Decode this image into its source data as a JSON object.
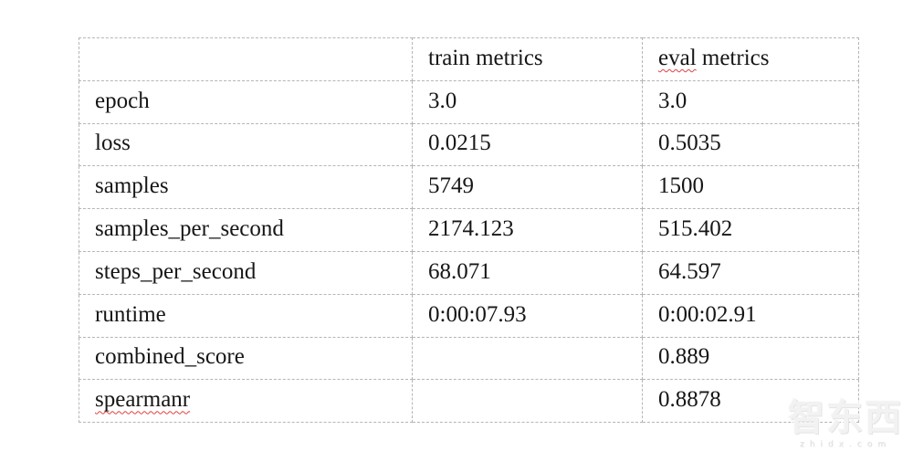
{
  "table": {
    "header": {
      "metric_label": "",
      "train_label": "train metrics",
      "eval_word": "eval",
      "eval_rest": " metrics"
    },
    "rows": [
      {
        "metric": "epoch",
        "train": "3.0",
        "eval": "3.0",
        "metric_misspelled": false
      },
      {
        "metric": "loss",
        "train": "0.0215",
        "eval": "0.5035",
        "metric_misspelled": false
      },
      {
        "metric": "samples",
        "train": "5749",
        "eval": "1500",
        "metric_misspelled": false
      },
      {
        "metric": "samples_per_second",
        "train": "2174.123",
        "eval": "515.402",
        "metric_misspelled": false
      },
      {
        "metric": "steps_per_second",
        "train": "68.071",
        "eval": "64.597",
        "metric_misspelled": false
      },
      {
        "metric": "runtime",
        "train": "0:00:07.93",
        "eval": "0:00:02.91",
        "metric_misspelled": false
      },
      {
        "metric": "combined_score",
        "train": "",
        "eval": "0.889",
        "metric_misspelled": false
      },
      {
        "metric": "spearmanr",
        "train": "",
        "eval": "0.8878",
        "metric_misspelled": true
      }
    ],
    "colors": {
      "border": "#b5b5b5",
      "text": "#161616",
      "spellcheck_underline": "#df4040"
    }
  },
  "watermark": {
    "logo_text": "智东西",
    "domain_text": "zhidx.com",
    "color": "#ebebeb"
  }
}
